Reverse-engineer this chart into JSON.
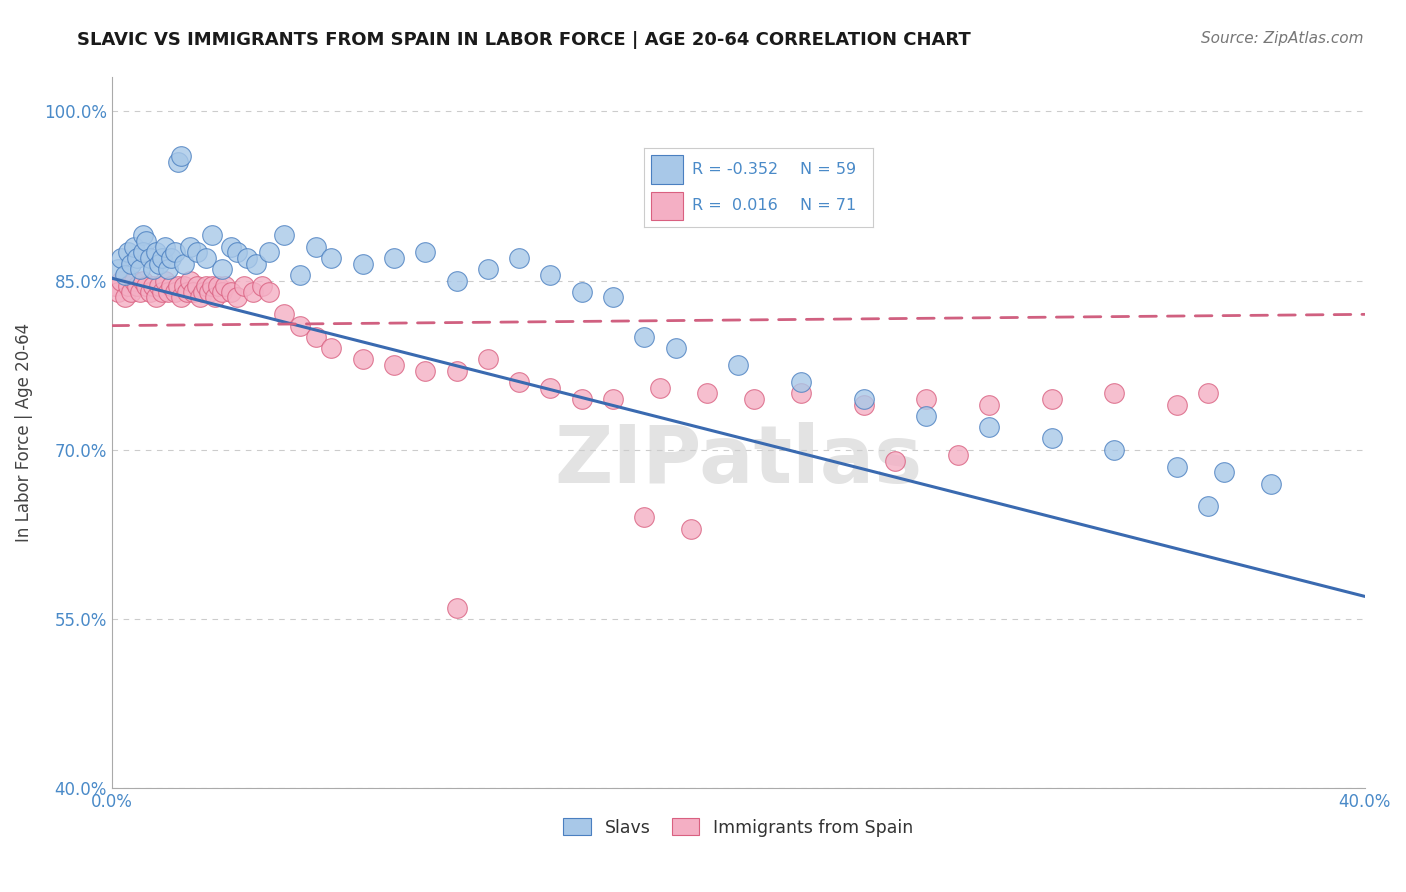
{
  "title": "SLAVIC VS IMMIGRANTS FROM SPAIN IN LABOR FORCE | AGE 20-64 CORRELATION CHART",
  "source": "Source: ZipAtlas.com",
  "ylabel": "In Labor Force | Age 20-64",
  "xlim": [
    0.0,
    0.4
  ],
  "ylim": [
    0.4,
    1.03
  ],
  "yticks": [
    0.4,
    0.55,
    0.7,
    0.85,
    1.0
  ],
  "yticklabels": [
    "40.0%",
    "55.0%",
    "70.0%",
    "85.0%",
    "100.0%"
  ],
  "xticks": [
    0.0,
    0.1,
    0.2,
    0.3,
    0.4
  ],
  "xticklabels": [
    "0.0%",
    "",
    "",
    "",
    "40.0%"
  ],
  "legend_blue_r": "-0.352",
  "legend_blue_n": "59",
  "legend_pink_r": "0.016",
  "legend_pink_n": "71",
  "blue_fill": "#a8c8e8",
  "blue_edge": "#4a7fc0",
  "pink_fill": "#f4afc4",
  "pink_edge": "#d96080",
  "blue_line_color": "#3a6ab0",
  "pink_line_color": "#d06080",
  "watermark": "ZIPatlas",
  "blue_line_x0": 0.0,
  "blue_line_y0": 0.852,
  "blue_line_x1": 0.4,
  "blue_line_y1": 0.57,
  "pink_line_x0": 0.0,
  "pink_line_y0": 0.81,
  "pink_line_x1": 0.4,
  "pink_line_y1": 0.82,
  "blue_x": [
    0.002,
    0.003,
    0.004,
    0.005,
    0.006,
    0.007,
    0.008,
    0.009,
    0.01,
    0.01,
    0.011,
    0.012,
    0.013,
    0.014,
    0.015,
    0.016,
    0.017,
    0.018,
    0.019,
    0.02,
    0.021,
    0.022,
    0.023,
    0.025,
    0.027,
    0.03,
    0.032,
    0.035,
    0.038,
    0.04,
    0.043,
    0.046,
    0.05,
    0.055,
    0.06,
    0.065,
    0.07,
    0.08,
    0.09,
    0.1,
    0.11,
    0.12,
    0.13,
    0.14,
    0.15,
    0.16,
    0.17,
    0.18,
    0.2,
    0.22,
    0.24,
    0.26,
    0.28,
    0.3,
    0.32,
    0.34,
    0.355,
    0.37,
    0.35
  ],
  "blue_y": [
    0.86,
    0.87,
    0.855,
    0.875,
    0.865,
    0.88,
    0.87,
    0.86,
    0.89,
    0.875,
    0.885,
    0.87,
    0.86,
    0.875,
    0.865,
    0.87,
    0.88,
    0.86,
    0.87,
    0.875,
    0.955,
    0.96,
    0.865,
    0.88,
    0.875,
    0.87,
    0.89,
    0.86,
    0.88,
    0.875,
    0.87,
    0.865,
    0.875,
    0.89,
    0.855,
    0.88,
    0.87,
    0.865,
    0.87,
    0.875,
    0.85,
    0.86,
    0.87,
    0.855,
    0.84,
    0.835,
    0.8,
    0.79,
    0.775,
    0.76,
    0.745,
    0.73,
    0.72,
    0.71,
    0.7,
    0.685,
    0.68,
    0.67,
    0.65
  ],
  "pink_x": [
    0.001,
    0.002,
    0.003,
    0.004,
    0.005,
    0.006,
    0.007,
    0.008,
    0.009,
    0.01,
    0.011,
    0.012,
    0.013,
    0.014,
    0.015,
    0.016,
    0.017,
    0.018,
    0.019,
    0.02,
    0.021,
    0.022,
    0.023,
    0.024,
    0.025,
    0.026,
    0.027,
    0.028,
    0.029,
    0.03,
    0.031,
    0.032,
    0.033,
    0.034,
    0.035,
    0.036,
    0.038,
    0.04,
    0.042,
    0.045,
    0.048,
    0.05,
    0.055,
    0.06,
    0.065,
    0.07,
    0.08,
    0.09,
    0.1,
    0.11,
    0.12,
    0.13,
    0.14,
    0.15,
    0.16,
    0.175,
    0.19,
    0.205,
    0.22,
    0.24,
    0.26,
    0.28,
    0.3,
    0.32,
    0.34,
    0.25,
    0.35,
    0.27,
    0.17,
    0.185,
    0.11
  ],
  "pink_y": [
    0.845,
    0.84,
    0.85,
    0.835,
    0.845,
    0.84,
    0.85,
    0.845,
    0.84,
    0.85,
    0.845,
    0.84,
    0.845,
    0.835,
    0.845,
    0.84,
    0.85,
    0.84,
    0.845,
    0.84,
    0.845,
    0.835,
    0.845,
    0.84,
    0.85,
    0.84,
    0.845,
    0.835,
    0.84,
    0.845,
    0.84,
    0.845,
    0.835,
    0.845,
    0.84,
    0.845,
    0.84,
    0.835,
    0.845,
    0.84,
    0.845,
    0.84,
    0.82,
    0.81,
    0.8,
    0.79,
    0.78,
    0.775,
    0.77,
    0.77,
    0.78,
    0.76,
    0.755,
    0.745,
    0.745,
    0.755,
    0.75,
    0.745,
    0.75,
    0.74,
    0.745,
    0.74,
    0.745,
    0.75,
    0.74,
    0.69,
    0.75,
    0.695,
    0.64,
    0.63,
    0.56
  ]
}
